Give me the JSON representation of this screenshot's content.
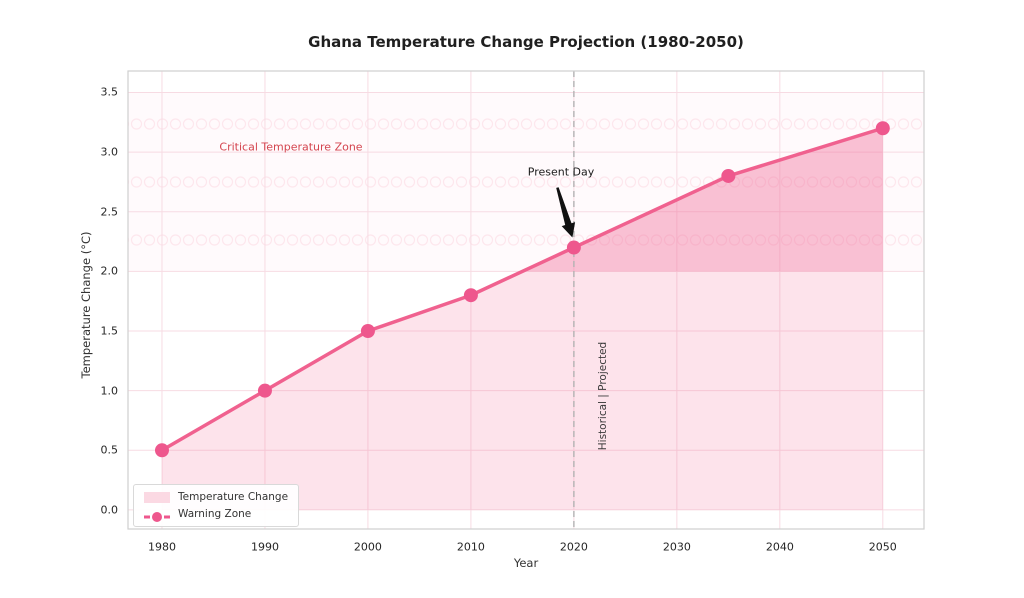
{
  "chart_data": {
    "type": "area",
    "title": "Ghana Temperature Change Projection (1980-2050)",
    "xlabel": "Year",
    "ylabel": "Temperature Change (°C)",
    "x": [
      1980,
      1990,
      2000,
      2010,
      2020,
      2035,
      2050
    ],
    "y": [
      0.5,
      1.0,
      1.5,
      1.8,
      2.2,
      2.8,
      3.2
    ],
    "xticks": [
      1980,
      1990,
      2000,
      2010,
      2020,
      2030,
      2040,
      2050
    ],
    "yticks": [
      0.0,
      0.5,
      1.0,
      1.5,
      2.0,
      2.5,
      3.0,
      3.5
    ],
    "xlim": [
      1976.7,
      2054.0
    ],
    "ylim": [
      -0.16,
      3.68
    ],
    "grid": true,
    "legend_position": "lower left",
    "critical_zone": {
      "y_from": 2.0,
      "y_to": 3.5,
      "label": "Critical Temperature Zone"
    },
    "present_day": {
      "x": 2020,
      "y": 2.2,
      "label": "Present Day"
    },
    "divider": {
      "x": 2020,
      "label": "Historical | Projected"
    },
    "legend": {
      "items": [
        {
          "label": "Temperature Change",
          "swatch": "patch"
        },
        {
          "label": "Warning Zone",
          "swatch": "line-marker"
        }
      ]
    },
    "colors": {
      "line": "#F0618F",
      "marker": "#EE578D",
      "area_fill": "rgba(243,114,157,0.20)",
      "warning_fill": "rgba(240,98,146,0.24)",
      "band_fill": "rgba(244,111,149,0.03)",
      "band_hatch": "rgba(244,111,149,0.14)",
      "grid": "#F7DBE3",
      "spine": "#CFCFCF",
      "divider_line": "#B3B3B3",
      "critical_label": "#D4454F",
      "annotation_arrow": "#111111"
    }
  }
}
